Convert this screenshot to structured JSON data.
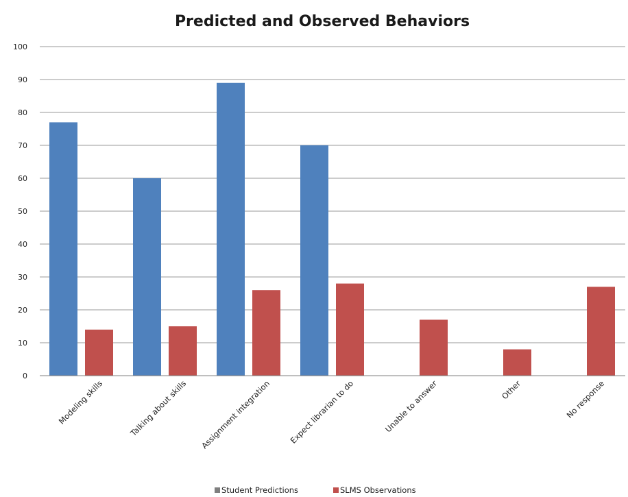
{
  "chart_data": {
    "type": "bar",
    "title": "Predicted and Observed Behaviors",
    "categories": [
      "Modeling skills",
      "Talking about skills",
      "Assignment integration",
      "Expect librarian to do",
      "Unable to answer",
      "Other",
      "No response"
    ],
    "series": [
      {
        "name": "Student Predictions",
        "color": "#4f81bd",
        "values": [
          77,
          60,
          89,
          70,
          null,
          null,
          null
        ]
      },
      {
        "name": "SLMS Observations",
        "color": "#c0504d",
        "values": [
          14,
          15,
          26,
          28,
          17,
          8,
          27
        ]
      }
    ],
    "ylim": [
      0,
      100
    ],
    "yticks": [
      0,
      10,
      20,
      30,
      40,
      50,
      60,
      70,
      80,
      90,
      100
    ],
    "grid": true,
    "legend_position": "bottom"
  }
}
